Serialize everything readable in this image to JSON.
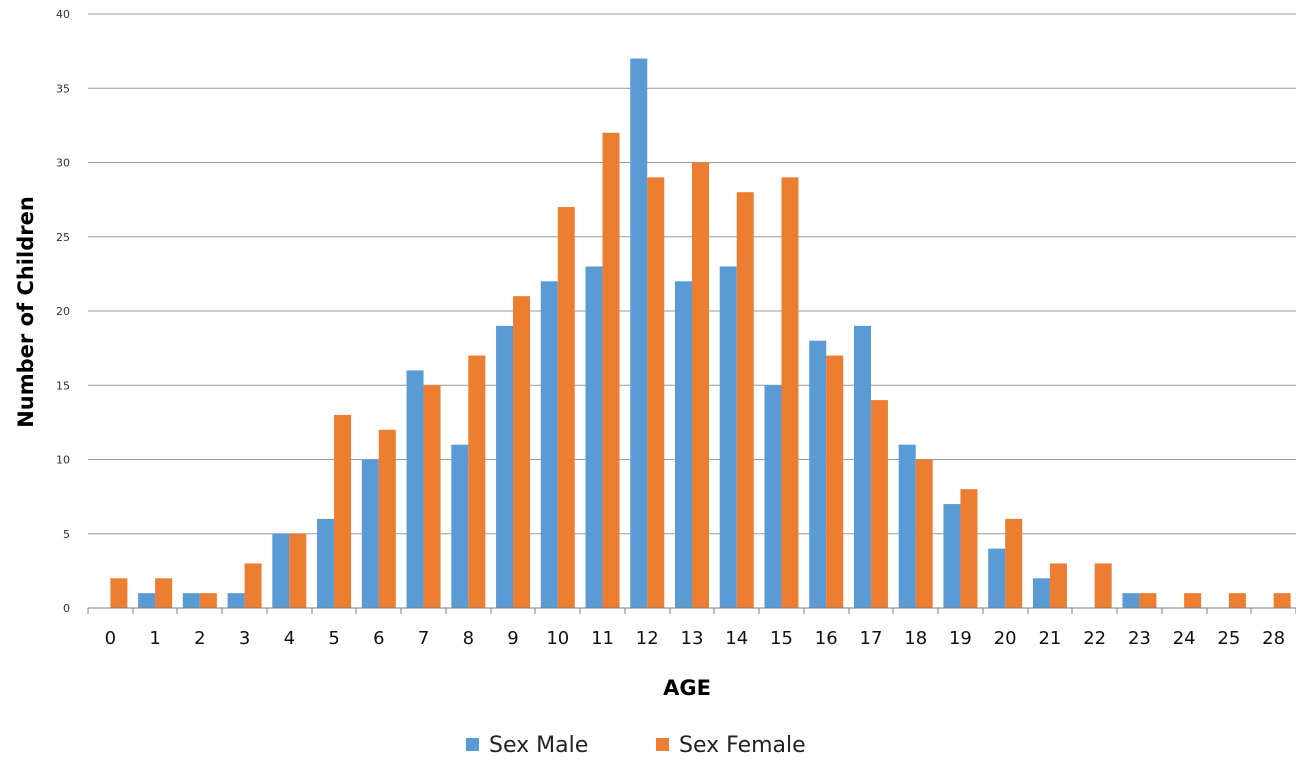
{
  "chart_data": {
    "type": "bar",
    "title": "",
    "xlabel": "AGE",
    "ylabel": "Number of Children",
    "ylim": [
      0,
      40
    ],
    "yticks": [
      0,
      5,
      10,
      15,
      20,
      25,
      30,
      35,
      40
    ],
    "grid": true,
    "legend_position": "bottom",
    "categories": [
      "0",
      "1",
      "2",
      "3",
      "4",
      "5",
      "6",
      "7",
      "8",
      "9",
      "10",
      "11",
      "12",
      "13",
      "14",
      "15",
      "16",
      "17",
      "18",
      "19",
      "20",
      "21",
      "22",
      "23",
      "24",
      "25",
      "28"
    ],
    "series": [
      {
        "name": "Sex Male",
        "color": "#5B9BD5",
        "values": [
          0,
          1,
          1,
          1,
          5,
          6,
          10,
          16,
          11,
          19,
          22,
          23,
          37,
          22,
          23,
          15,
          18,
          19,
          11,
          7,
          4,
          2,
          0,
          1,
          0,
          0,
          0
        ]
      },
      {
        "name": "Sex Female",
        "color": "#ED7D31",
        "values": [
          2,
          2,
          1,
          3,
          5,
          13,
          12,
          15,
          17,
          21,
          27,
          32,
          29,
          30,
          28,
          29,
          17,
          14,
          10,
          8,
          6,
          3,
          3,
          1,
          1,
          1,
          1
        ]
      }
    ]
  }
}
